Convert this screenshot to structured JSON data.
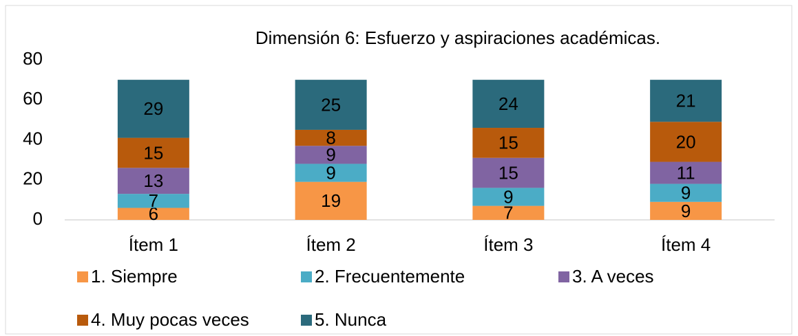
{
  "chart_data": {
    "type": "stacked_bar",
    "title": "Dimensión 6: Esfuerzo y aspiraciones académicas.",
    "categories": [
      "Ítem 1",
      "Ítem 2",
      "Ítem 3",
      "Ítem 4"
    ],
    "series": [
      {
        "name": "1. Siempre",
        "color": "#f79646",
        "values": [
          6,
          19,
          7,
          9
        ]
      },
      {
        "name": "2. Frecuentemente",
        "color": "#4bacc6",
        "values": [
          7,
          9,
          9,
          9
        ]
      },
      {
        "name": "3. A veces",
        "color": "#8064a2",
        "values": [
          13,
          9,
          15,
          11
        ]
      },
      {
        "name": "4. Muy pocas veces",
        "color": "#b85a0c",
        "values": [
          15,
          8,
          15,
          20
        ]
      },
      {
        "name": "5. Nunca",
        "color": "#2b6a7c",
        "values": [
          29,
          25,
          24,
          21
        ]
      }
    ],
    "ylim": [
      0,
      80
    ],
    "yticks": [
      0,
      20,
      40,
      60,
      80
    ],
    "grid": false,
    "legend": "bottom"
  }
}
